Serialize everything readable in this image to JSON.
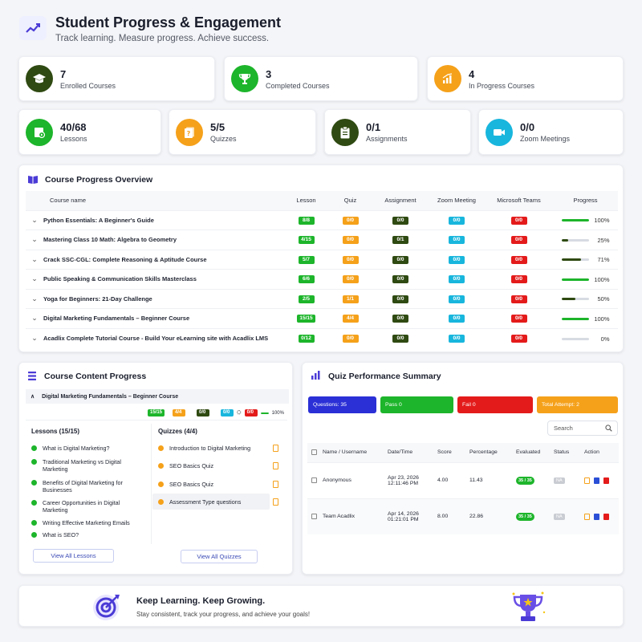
{
  "header": {
    "title": "Student Progress & Engagement",
    "subtitle": "Track learning. Measure progress. Achieve success.",
    "icon": "chart-icon"
  },
  "stats_top": [
    {
      "value": "7",
      "label": "Enrolled Courses",
      "color": "#2f4a12",
      "icon": "graduation-cap-icon"
    },
    {
      "value": "3",
      "label": "Completed Courses",
      "color": "#1db52b",
      "icon": "trophy-icon"
    },
    {
      "value": "4",
      "label": "In Progress Courses",
      "color": "#f5a11a",
      "icon": "bar-chart-icon"
    }
  ],
  "stats_bottom": [
    {
      "value": "40/68",
      "label": "Lessons",
      "color": "#1db52b",
      "icon": "lesson-icon"
    },
    {
      "value": "5/5",
      "label": "Quizzes",
      "color": "#f5a11a",
      "icon": "quiz-icon"
    },
    {
      "value": "0/1",
      "label": "Assignments",
      "color": "#2f4a12",
      "icon": "clipboard-icon"
    },
    {
      "value": "0/0",
      "label": "Zoom Meetings",
      "color": "#18b6dd",
      "icon": "video-icon"
    }
  ],
  "overview": {
    "title": "Course Progress Overview",
    "columns": [
      "Course name",
      "Lesson",
      "Quiz",
      "Assignment",
      "Zoom Meeting",
      "Microsoft Teams",
      "Progress"
    ],
    "rows": [
      {
        "name": "Python Essentials: A Beginner's Guide",
        "lesson": "8/8",
        "quiz": "0/0",
        "assignment": "0/0",
        "zoom": "0/0",
        "teams": "0/0",
        "progress": 100,
        "progress_label": "100%"
      },
      {
        "name": "Mastering Class 10 Math: Algebra to Geometry",
        "lesson": "4/15",
        "quiz": "0/0",
        "assignment": "0/1",
        "zoom": "0/0",
        "teams": "0/0",
        "progress": 25,
        "progress_label": "25%"
      },
      {
        "name": "Crack SSC-CGL: Complete Reasoning & Aptitude Course",
        "lesson": "5/7",
        "quiz": "0/0",
        "assignment": "0/0",
        "zoom": "0/0",
        "teams": "0/0",
        "progress": 71,
        "progress_label": "71%"
      },
      {
        "name": "Public Speaking & Communication Skills Masterclass",
        "lesson": "6/6",
        "quiz": "0/0",
        "assignment": "0/0",
        "zoom": "0/0",
        "teams": "0/0",
        "progress": 100,
        "progress_label": "100%"
      },
      {
        "name": "Yoga for Beginners: 21-Day Challenge",
        "lesson": "2/5",
        "quiz": "1/1",
        "assignment": "0/0",
        "zoom": "0/0",
        "teams": "0/0",
        "progress": 50,
        "progress_label": "50%"
      },
      {
        "name": "Digital Marketing Fundamentals – Beginner Course",
        "lesson": "15/15",
        "quiz": "4/4",
        "assignment": "0/0",
        "zoom": "0/0",
        "teams": "0/0",
        "progress": 100,
        "progress_label": "100%"
      },
      {
        "name": "Acadlix Complete Tutorial Course - Build Your eLearning site with Acadlix LMS",
        "lesson": "0/12",
        "quiz": "0/0",
        "assignment": "0/0",
        "zoom": "0/0",
        "teams": "0/0",
        "progress": 0,
        "progress_label": "0%"
      }
    ]
  },
  "content_progress": {
    "title": "Course Content Progress",
    "course": "Digital Marketing Fundamentals – Beginner Course",
    "pills": {
      "lesson": "15/15",
      "quiz": "4/4",
      "assignment": "0/0",
      "zoom": "0/0",
      "teams": "0/0",
      "progress_label": "100%"
    },
    "lessons_title": "Lessons (15/15)",
    "lessons": [
      "What is Digital Marketing?",
      "Traditional Marketing vs Digital Marketing",
      "Benefits of Digital Marketing for Businesses",
      "Career Opportunities in Digital Marketing",
      "Writing Effective Marketing Emails",
      "What is SEO?"
    ],
    "quizzes_title": "Quizzes (4/4)",
    "quizzes": [
      "Introduction to Digital Marketing",
      "SEO Basics Quiz",
      "SEO Basics Quiz",
      "Assessment Type questions"
    ],
    "view_lessons": "View All Lessons",
    "view_quizzes": "View All Quizzes"
  },
  "quiz_summary": {
    "title": "Quiz Performance Summary",
    "boxes": [
      {
        "label": "Questions: 35",
        "color": "#2a2fd6"
      },
      {
        "label": "Pass 0",
        "color": "#1db52b"
      },
      {
        "label": "Fail 0",
        "color": "#e41b1b"
      },
      {
        "label": "Total Attempt: 2",
        "color": "#f5a11a"
      }
    ],
    "search_placeholder": "Search",
    "columns": [
      "Name / Username",
      "Date/Time",
      "Score",
      "Percentage",
      "Evaluated",
      "Status",
      "Action"
    ],
    "rows": [
      {
        "name": "Anonymous",
        "date": "Apr 23, 2026",
        "time": "12:11:46 PM",
        "score": "4.00",
        "percentage": "11.43",
        "evaluated": "35 / 35",
        "status": "NA"
      },
      {
        "name": "Team Acadlix",
        "date": "Apr 14, 2026",
        "time": "01:21:01 PM",
        "score": "8.00",
        "percentage": "22.86",
        "evaluated": "35 / 35",
        "status": "NA"
      }
    ]
  },
  "footer": {
    "title": "Keep Learning. Keep Growing.",
    "subtitle": "Stay consistent, track your progress, and achieve your goals!"
  }
}
